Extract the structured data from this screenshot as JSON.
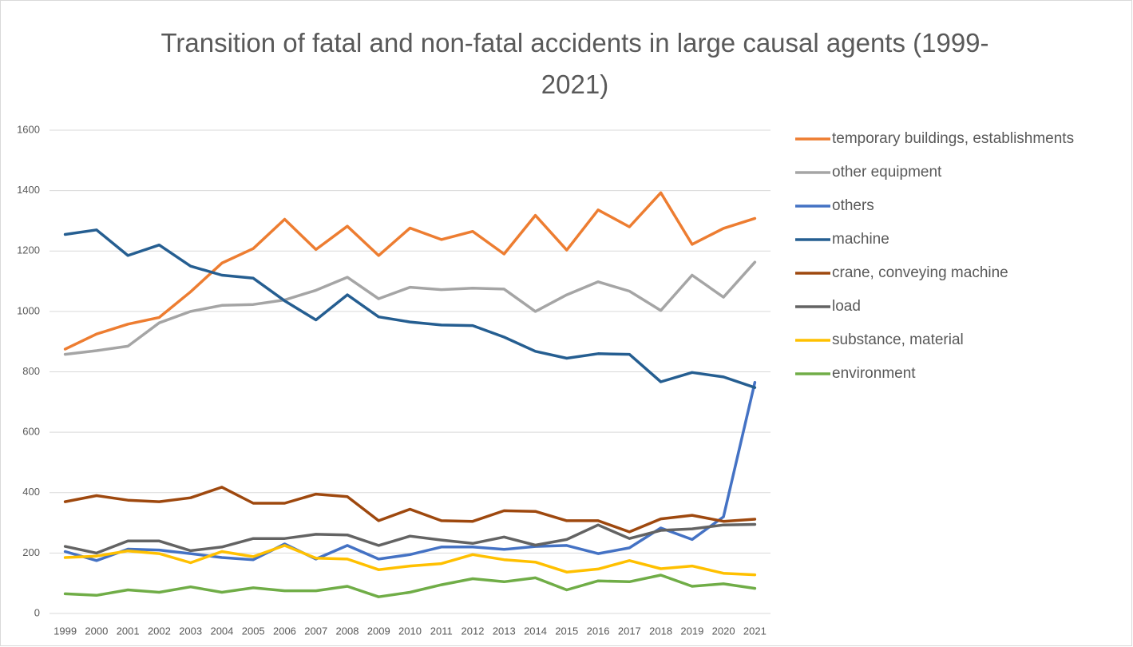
{
  "chart_data": {
    "type": "line",
    "title": "Transition of fatal and non-fatal accidents in large causal agents (1999-2021)",
    "categories": [
      "1999",
      "2000",
      "2001",
      "2002",
      "2003",
      "2004",
      "2005",
      "2006",
      "2007",
      "2008",
      "2009",
      "2010",
      "2011",
      "2012",
      "2013",
      "2014",
      "2015",
      "2016",
      "2017",
      "2018",
      "2019",
      "2020",
      "2021"
    ],
    "ylim": [
      0,
      1600
    ],
    "yticks": [
      0,
      200,
      400,
      600,
      800,
      1000,
      1200,
      1400,
      1600
    ],
    "grid": true,
    "legend": "right",
    "series": [
      {
        "name": "temporary buildings, establishments",
        "color": "#ed7d31",
        "values": [
          875,
          925,
          958,
          980,
          1065,
          1160,
          1208,
          1305,
          1205,
          1282,
          1185,
          1276,
          1238,
          1265,
          1190,
          1318,
          1203,
          1336,
          1280,
          1393,
          1222,
          1275,
          1308
        ]
      },
      {
        "name": "other equipment",
        "color": "#a5a5a5",
        "values": [
          858,
          870,
          885,
          962,
          1000,
          1020,
          1023,
          1038,
          1070,
          1113,
          1042,
          1080,
          1072,
          1077,
          1074,
          1000,
          1055,
          1098,
          1067,
          1003,
          1120,
          1047,
          1163
        ]
      },
      {
        "name": "others",
        "color": "#4472c4",
        "values": [
          205,
          175,
          213,
          210,
          198,
          185,
          178,
          230,
          180,
          225,
          180,
          195,
          220,
          220,
          212,
          222,
          225,
          198,
          217,
          283,
          245,
          320,
          765
        ]
      },
      {
        "name": "machine",
        "color": "#255e91",
        "values": [
          1255,
          1270,
          1185,
          1220,
          1150,
          1120,
          1110,
          1035,
          972,
          1055,
          982,
          965,
          955,
          953,
          915,
          868,
          845,
          860,
          858,
          767,
          798,
          783,
          748
        ]
      },
      {
        "name": "crane, conveying machine",
        "color": "#9e480e",
        "values": [
          370,
          390,
          375,
          370,
          383,
          418,
          365,
          365,
          395,
          387,
          307,
          345,
          307,
          305,
          340,
          338,
          307,
          307,
          270,
          313,
          325,
          305,
          312
        ]
      },
      {
        "name": "load",
        "color": "#636363",
        "values": [
          222,
          200,
          240,
          240,
          208,
          220,
          248,
          248,
          262,
          260,
          225,
          256,
          243,
          232,
          253,
          226,
          245,
          293,
          248,
          275,
          280,
          293,
          295
        ]
      },
      {
        "name": "substance, material",
        "color": "#ffc000",
        "values": [
          185,
          190,
          207,
          198,
          168,
          205,
          188,
          225,
          183,
          180,
          145,
          157,
          165,
          195,
          178,
          170,
          137,
          147,
          175,
          148,
          157,
          133,
          128
        ]
      },
      {
        "name": "environment",
        "color": "#70ad47",
        "values": [
          65,
          60,
          78,
          70,
          88,
          70,
          85,
          75,
          75,
          90,
          55,
          70,
          95,
          115,
          105,
          118,
          78,
          108,
          105,
          127,
          90,
          98,
          83
        ]
      }
    ]
  }
}
